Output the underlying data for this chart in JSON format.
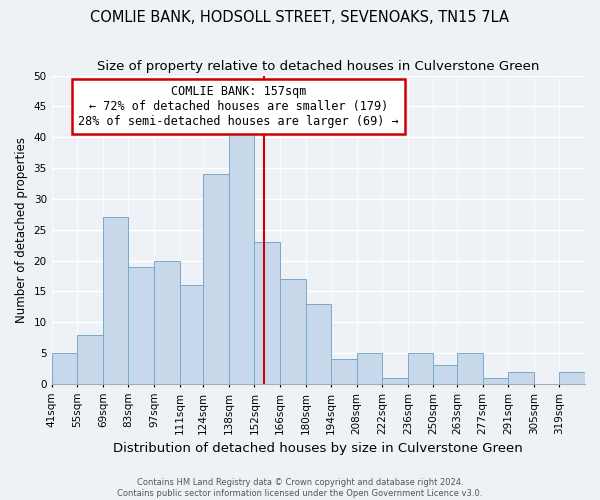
{
  "title1": "COMLIE BANK, HODSOLL STREET, SEVENOAKS, TN15 7LA",
  "title2": "Size of property relative to detached houses in Culverstone Green",
  "xlabel": "Distribution of detached houses by size in Culverstone Green",
  "ylabel": "Number of detached properties",
  "bin_labels": [
    "41sqm",
    "55sqm",
    "69sqm",
    "83sqm",
    "97sqm",
    "111sqm",
    "124sqm",
    "138sqm",
    "152sqm",
    "166sqm",
    "180sqm",
    "194sqm",
    "208sqm",
    "222sqm",
    "236sqm",
    "250sqm",
    "263sqm",
    "277sqm",
    "291sqm",
    "305sqm",
    "319sqm"
  ],
  "bar_heights": [
    5,
    8,
    27,
    19,
    20,
    16,
    34,
    41,
    23,
    17,
    13,
    4,
    5,
    1,
    5,
    3,
    5,
    1,
    2,
    0,
    2
  ],
  "bar_color": "#c8d8eb",
  "bar_edge_color": "#7aaac8",
  "bin_edges": [
    41,
    55,
    69,
    83,
    97,
    111,
    124,
    138,
    152,
    166,
    180,
    194,
    208,
    222,
    236,
    250,
    263,
    277,
    291,
    305,
    319,
    333
  ],
  "ylim": [
    0,
    50
  ],
  "yticks": [
    0,
    5,
    10,
    15,
    20,
    25,
    30,
    35,
    40,
    45,
    50
  ],
  "reference_line_x": 157,
  "annotation_title": "COMLIE BANK: 157sqm",
  "annotation_line1": "← 72% of detached houses are smaller (179)",
  "annotation_line2": "28% of semi-detached houses are larger (69) →",
  "annotation_box_color": "#ffffff",
  "annotation_box_edge": "#cc0000",
  "ref_line_color": "#cc0000",
  "footer1": "Contains HM Land Registry data © Crown copyright and database right 2024.",
  "footer2": "Contains public sector information licensed under the Open Government Licence v3.0.",
  "background_color": "#eef2f7",
  "grid_color": "#ffffff",
  "title1_fontsize": 10.5,
  "title2_fontsize": 9.5,
  "xlabel_fontsize": 9.5,
  "ylabel_fontsize": 8.5,
  "annot_fontsize": 8.5,
  "tick_fontsize": 7.5
}
